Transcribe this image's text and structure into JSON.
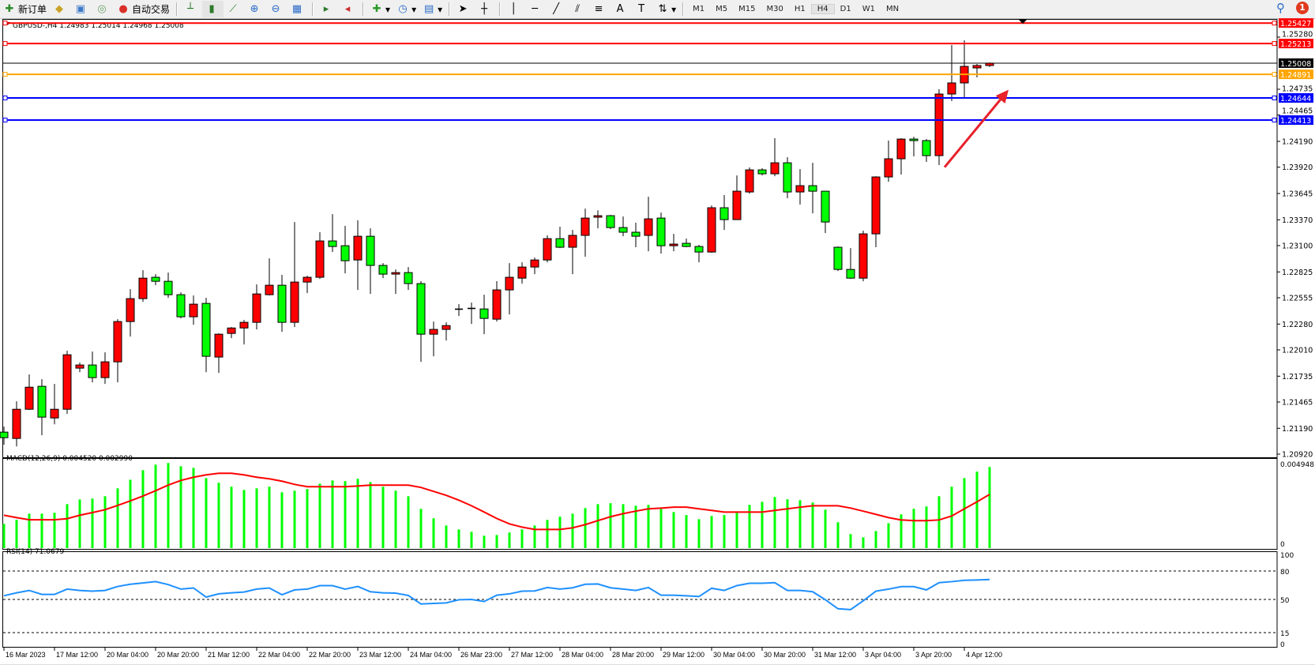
{
  "toolbar": {
    "new_order": "新订单",
    "auto_trading": "自动交易",
    "timeframes": [
      "M1",
      "M5",
      "M15",
      "M30",
      "H1",
      "H4",
      "D1",
      "W1",
      "MN"
    ],
    "active_timeframe": "H4",
    "notification_count": "1"
  },
  "chart": {
    "header": "GBPUSD-,H4  1.24983 1.25014 1.24968 1.25008",
    "symbol": "GBPUSD-",
    "period": "H4",
    "colors": {
      "bull": "#ff0000",
      "bear": "#00ff00",
      "wick": "#000000",
      "macd_hist": "#00ff00",
      "macd_signal": "#ff0000",
      "rsi": "#1e90ff",
      "arrow": "#e8202a"
    },
    "price_ticks": [
      "1.25280",
      "1.24735",
      "1.24465",
      "1.24190",
      "1.23920",
      "1.23645",
      "1.23370",
      "1.23100",
      "1.22825",
      "1.22555",
      "1.22280",
      "1.22010",
      "1.21735",
      "1.21465",
      "1.21190",
      "1.20920"
    ],
    "price_range": [
      1.2092,
      1.2528
    ],
    "hlines": [
      {
        "price": "1.25427",
        "color": "#ff0000"
      },
      {
        "price": "1.25213",
        "color": "#ff0000"
      },
      {
        "price": "1.25008",
        "color": "#000000"
      },
      {
        "price": "1.24891",
        "color": "#ffa500"
      },
      {
        "price": "1.24644",
        "color": "#0000ff"
      },
      {
        "price": "1.24413",
        "color": "#0000ff"
      }
    ],
    "time_labels": [
      "16 Mar 2023",
      "17 Mar 12:00",
      "20 Mar 04:00",
      "20 Mar 20:00",
      "21 Mar 12:00",
      "22 Mar 04:00",
      "22 Mar 20:00",
      "23 Mar 12:00",
      "24 Mar 04:00",
      "26 Mar 23:00",
      "27 Mar 12:00",
      "28 Mar 04:00",
      "28 Mar 20:00",
      "29 Mar 12:00",
      "30 Mar 04:00",
      "30 Mar 20:00",
      "31 Mar 12:00",
      "3 Apr 04:00",
      "3 Apr 20:00",
      "4 Apr 12:00"
    ],
    "candles_ohlc": [
      [
        1.2115,
        1.21208,
        1.21018,
        1.21092
      ],
      [
        1.21084,
        1.21472,
        1.21001,
        1.21389
      ],
      [
        1.21389,
        1.21753,
        1.21381,
        1.2162
      ],
      [
        1.21629,
        1.21703,
        1.21117,
        1.21307
      ],
      [
        1.21298,
        1.21654,
        1.21232,
        1.21389
      ],
      [
        1.21389,
        1.22001,
        1.2134,
        1.21959
      ],
      [
        1.21819,
        1.21877,
        1.21777,
        1.21852
      ],
      [
        1.21852,
        1.21992,
        1.2167,
        1.2172
      ],
      [
        1.2172,
        1.21984,
        1.21654,
        1.21885
      ],
      [
        1.21885,
        1.22331,
        1.2167,
        1.22306
      ],
      [
        1.22306,
        1.22645,
        1.22149,
        1.22546
      ],
      [
        1.22546,
        1.22843,
        1.22513,
        1.2276
      ],
      [
        1.22769,
        1.22802,
        1.22686,
        1.22727
      ],
      [
        1.22727,
        1.22818,
        1.22554,
        1.22587
      ],
      [
        1.22587,
        1.22612,
        1.22339,
        1.22356
      ],
      [
        1.22356,
        1.22579,
        1.22273,
        1.22488
      ],
      [
        1.22496,
        1.22554,
        1.21777,
        1.21943
      ],
      [
        1.21935,
        1.22182,
        1.21769,
        1.22174
      ],
      [
        1.22182,
        1.22248,
        1.22133,
        1.22239
      ],
      [
        1.22239,
        1.22323,
        1.22067,
        1.22298
      ],
      [
        1.22298,
        1.22694,
        1.22224,
        1.22595
      ],
      [
        1.22587,
        1.22967,
        1.22579,
        1.22686
      ],
      [
        1.22686,
        1.22794,
        1.22199,
        1.22298
      ],
      [
        1.22298,
        1.23347,
        1.22248,
        1.22719
      ],
      [
        1.22719,
        1.22785,
        1.22603,
        1.22769
      ],
      [
        1.22769,
        1.2324,
        1.22752,
        1.23149
      ],
      [
        1.23149,
        1.23429,
        1.23033,
        1.23091
      ],
      [
        1.23099,
        1.23306,
        1.2281,
        1.22942
      ],
      [
        1.2295,
        1.23364,
        1.22637,
        1.23198
      ],
      [
        1.23198,
        1.23281,
        1.22595,
        1.22893
      ],
      [
        1.22893,
        1.22917,
        1.2276,
        1.22802
      ],
      [
        1.22802,
        1.22851,
        1.22595,
        1.22818
      ],
      [
        1.22818,
        1.22876,
        1.22637,
        1.22703
      ],
      [
        1.22703,
        1.22728,
        1.21885,
        1.22174
      ],
      [
        1.22174,
        1.22306,
        1.21943,
        1.22224
      ],
      [
        1.22224,
        1.22298,
        1.22108,
        1.22264
      ],
      [
        1.22438,
        1.22488,
        1.22364,
        1.22438
      ],
      [
        1.22438,
        1.22504,
        1.22281,
        1.22446
      ],
      [
        1.22438,
        1.22587,
        1.22174,
        1.22339
      ],
      [
        1.22331,
        1.22728,
        1.22306,
        1.22637
      ],
      [
        1.22637,
        1.22917,
        1.22381,
        1.22769
      ],
      [
        1.2276,
        1.22926,
        1.22703,
        1.22876
      ],
      [
        1.22876,
        1.22975,
        1.22802,
        1.2295
      ],
      [
        1.2295,
        1.23207,
        1.22926,
        1.23173
      ],
      [
        1.23173,
        1.23297,
        1.23074,
        1.23083
      ],
      [
        1.23083,
        1.23264,
        1.22802,
        1.23207
      ],
      [
        1.23207,
        1.23487,
        1.22984,
        1.23388
      ],
      [
        1.23397,
        1.2347,
        1.23281,
        1.23413
      ],
      [
        1.23413,
        1.23421,
        1.23272,
        1.23289
      ],
      [
        1.23289,
        1.23405,
        1.23198,
        1.2324
      ],
      [
        1.2324,
        1.23339,
        1.23083,
        1.23198
      ],
      [
        1.23207,
        1.23611,
        1.23041,
        1.2338
      ],
      [
        1.23388,
        1.23446,
        1.23017,
        1.23099
      ],
      [
        1.23099,
        1.23223,
        1.23041,
        1.23116
      ],
      [
        1.23124,
        1.23173,
        1.23083,
        1.23091
      ],
      [
        1.23091,
        1.23108,
        1.22926,
        1.23033
      ],
      [
        1.23033,
        1.2352,
        1.23025,
        1.23496
      ],
      [
        1.23496,
        1.23628,
        1.23264,
        1.23372
      ],
      [
        1.23372,
        1.23834,
        1.23372,
        1.23669
      ],
      [
        1.23661,
        1.23917,
        1.23644,
        1.23892
      ],
      [
        1.23892,
        1.23909,
        1.23834,
        1.23851
      ],
      [
        1.23851,
        1.24223,
        1.23826,
        1.23966
      ],
      [
        1.23966,
        1.24024,
        1.23595,
        1.23661
      ],
      [
        1.23661,
        1.239,
        1.23529,
        1.23727
      ],
      [
        1.23727,
        1.23966,
        1.23438,
        1.23669
      ],
      [
        1.23669,
        1.23669,
        1.23231,
        1.23347
      ],
      [
        1.23083,
        1.23091,
        1.22835,
        1.22851
      ],
      [
        1.22851,
        1.23074,
        1.22752,
        1.2276
      ],
      [
        1.2276,
        1.23256,
        1.22727,
        1.23223
      ],
      [
        1.23223,
        1.23826,
        1.23083,
        1.23818
      ],
      [
        1.23818,
        1.24198,
        1.23768,
        1.24008
      ],
      [
        1.24008,
        1.24223,
        1.23843,
        1.24214
      ],
      [
        1.24214,
        1.24239,
        1.24033,
        1.24198
      ],
      [
        1.24198,
        1.24214,
        1.23975,
        1.24041
      ],
      [
        1.24041,
        1.24735,
        1.23942,
        1.24685
      ],
      [
        1.24685,
        1.25197,
        1.24611,
        1.24801
      ],
      [
        1.24801,
        1.25247,
        1.24652,
        1.24974
      ],
      [
        1.24958,
        1.24999,
        1.24859,
        1.24983
      ],
      [
        1.24983,
        1.25014,
        1.24968,
        1.25008
      ]
    ],
    "arrow": {
      "from": {
        "candle": 74,
        "price": 1.2392
      },
      "to": {
        "candle": 79.5,
        "price": 1.2473
      }
    }
  },
  "macd": {
    "label": "MACD(12,26,9) 0.004520 0.002990",
    "axis_max": "0.004948",
    "axis_zero": "0",
    "histogram": [
      0.00135,
      0.00158,
      0.00192,
      0.00192,
      0.00197,
      0.00245,
      0.00271,
      0.00276,
      0.00289,
      0.00333,
      0.00381,
      0.00434,
      0.00465,
      0.00474,
      0.00456,
      0.00447,
      0.0039,
      0.00364,
      0.00342,
      0.00324,
      0.00333,
      0.00342,
      0.00311,
      0.0032,
      0.00329,
      0.00359,
      0.00377,
      0.00373,
      0.00386,
      0.00368,
      0.00342,
      0.0032,
      0.00289,
      0.00219,
      0.00166,
      0.00126,
      0.00104,
      0.00091,
      0.00069,
      0.00073,
      0.00087,
      0.00104,
      0.00126,
      0.00157,
      0.00175,
      0.00192,
      0.00223,
      0.00245,
      0.0025,
      0.00245,
      0.00236,
      0.00241,
      0.00219,
      0.00201,
      0.00184,
      0.00161,
      0.00179,
      0.00184,
      0.00197,
      0.00241,
      0.00258,
      0.00285,
      0.00272,
      0.00267,
      0.00254,
      0.00214,
      0.00144,
      0.00078,
      0.0006,
      0.00095,
      0.00139,
      0.00188,
      0.00219,
      0.00232,
      0.00289,
      0.00342,
      0.0039,
      0.00426,
      0.00452
    ],
    "signal": [
      0.00183,
      0.0017,
      0.00158,
      0.00158,
      0.00158,
      0.00164,
      0.00183,
      0.00198,
      0.00214,
      0.00238,
      0.00263,
      0.0029,
      0.0032,
      0.00351,
      0.00377,
      0.00395,
      0.00408,
      0.00417,
      0.00417,
      0.00408,
      0.00395,
      0.00386,
      0.00373,
      0.00355,
      0.00342,
      0.00342,
      0.00342,
      0.00342,
      0.00346,
      0.00351,
      0.00351,
      0.00351,
      0.00351,
      0.00338,
      0.00316,
      0.00294,
      0.00267,
      0.00236,
      0.00201,
      0.00165,
      0.00135,
      0.00117,
      0.00104,
      0.00104,
      0.00104,
      0.00113,
      0.00131,
      0.00153,
      0.00175,
      0.00192,
      0.00206,
      0.00219,
      0.00223,
      0.00228,
      0.00228,
      0.00219,
      0.0021,
      0.00201,
      0.00201,
      0.00201,
      0.00201,
      0.0021,
      0.00219,
      0.00228,
      0.00236,
      0.00236,
      0.00236,
      0.00223,
      0.00206,
      0.00188,
      0.0017,
      0.00157,
      0.00153,
      0.00153,
      0.00157,
      0.00179,
      0.00219,
      0.00258,
      0.00299
    ]
  },
  "rsi": {
    "label": "RSI(14) 71.0679",
    "levels": [
      "100",
      "80",
      "50",
      "15",
      "0"
    ],
    "values": [
      53.9,
      57.0,
      59.5,
      55.3,
      55.3,
      60.9,
      59.5,
      58.7,
      59.5,
      63.7,
      66.0,
      67.4,
      68.8,
      65.7,
      60.9,
      62.1,
      52.5,
      55.9,
      57.0,
      57.8,
      60.9,
      62.1,
      55.0,
      60.1,
      60.9,
      64.6,
      64.6,
      60.9,
      63.7,
      58.1,
      57.0,
      56.7,
      54.2,
      45.2,
      45.8,
      46.4,
      49.7,
      50.0,
      47.8,
      54.5,
      55.9,
      58.7,
      59.0,
      62.6,
      60.9,
      62.3,
      66.0,
      66.3,
      62.3,
      60.9,
      59.5,
      62.6,
      54.5,
      54.5,
      53.9,
      53.1,
      61.8,
      59.5,
      64.6,
      67.1,
      67.1,
      67.7,
      59.5,
      59.5,
      58.1,
      49.7,
      40.2,
      39.3,
      48.6,
      58.7,
      60.9,
      63.5,
      63.5,
      60.1,
      67.7,
      68.8,
      70.2,
      70.5,
      71.07
    ]
  }
}
